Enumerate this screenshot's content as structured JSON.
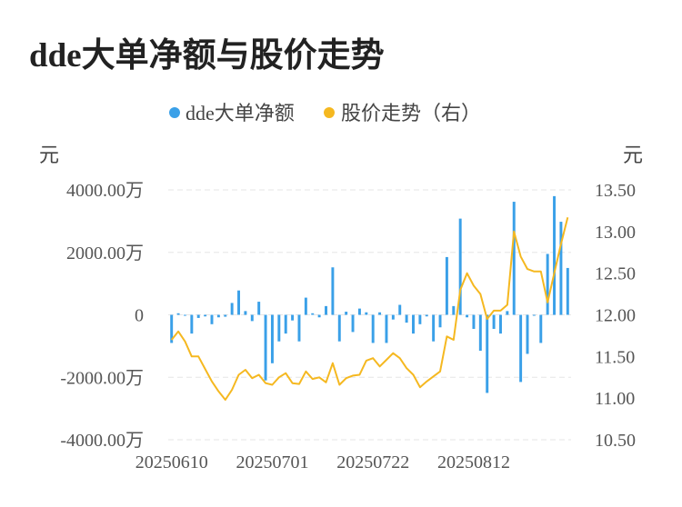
{
  "page": {
    "title": "dde大单净额与股价走势"
  },
  "chart_data": {
    "type": "bar+line",
    "title": "dde大单净额与股价走势",
    "left_axis": {
      "unit": "元",
      "min": -4000,
      "max": 4000,
      "ticks": [
        4000,
        2000,
        0,
        -2000,
        -4000
      ],
      "tick_labels": [
        "4000.00万",
        "2000.00万",
        "0",
        "-2000.00万",
        "-4000.00万"
      ]
    },
    "right_axis": {
      "unit": "元",
      "min": 10.5,
      "max": 13.5,
      "ticks": [
        13.5,
        13.0,
        12.5,
        12.0,
        11.5,
        11.0,
        10.5
      ],
      "tick_labels": [
        "13.50",
        "13.00",
        "12.50",
        "12.00",
        "11.50",
        "11.00",
        "10.50"
      ]
    },
    "x_tick_labels": [
      {
        "label": "20250610",
        "index": 0
      },
      {
        "label": "20250701",
        "index": 15
      },
      {
        "label": "20250722",
        "index": 30
      },
      {
        "label": "20250812",
        "index": 45
      }
    ],
    "x_count": 60,
    "legend_position": "top-center",
    "grid": "horizontal-dashed",
    "colors": {
      "bar": "#3aa0e8",
      "line": "#f5b820",
      "grid": "#e6e6e6"
    },
    "series": [
      {
        "name": "dde大单净额",
        "type": "bar",
        "axis": "left",
        "values": [
          -900,
          50,
          -30,
          -600,
          -100,
          -50,
          -300,
          -80,
          -60,
          380,
          780,
          120,
          -200,
          420,
          -2100,
          -1550,
          -850,
          -600,
          -180,
          -850,
          550,
          50,
          -80,
          280,
          1520,
          -850,
          100,
          -550,
          200,
          80,
          -900,
          80,
          -900,
          -150,
          320,
          -250,
          -600,
          -300,
          -50,
          -850,
          -400,
          1850,
          280,
          3080,
          -80,
          -450,
          -1150,
          -2500,
          -450,
          -600,
          120,
          3620,
          -2150,
          -1250,
          0,
          -900,
          1950,
          3800,
          2980,
          1500
        ]
      },
      {
        "name": "股价走势（右）",
        "type": "line",
        "axis": "right",
        "values": [
          11.7,
          11.8,
          11.68,
          11.5,
          11.5,
          11.35,
          11.2,
          11.08,
          10.98,
          11.1,
          11.28,
          11.34,
          11.24,
          11.28,
          11.18,
          11.16,
          11.25,
          11.3,
          11.18,
          11.17,
          11.32,
          11.23,
          11.25,
          11.19,
          11.42,
          11.16,
          11.24,
          11.27,
          11.28,
          11.45,
          11.48,
          11.38,
          11.46,
          11.54,
          11.48,
          11.36,
          11.28,
          11.13,
          11.2,
          11.26,
          11.32,
          11.74,
          11.7,
          12.3,
          12.5,
          12.35,
          12.25,
          11.95,
          12.05,
          12.05,
          12.12,
          13.0,
          12.7,
          12.55,
          12.52,
          12.52,
          12.15,
          12.5,
          12.85,
          13.17
        ]
      }
    ]
  }
}
